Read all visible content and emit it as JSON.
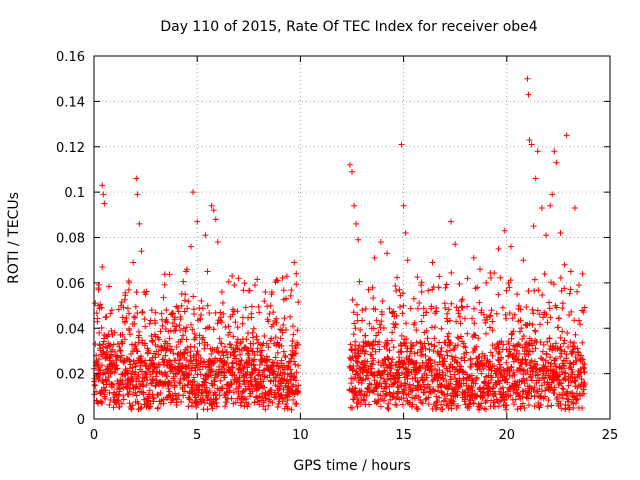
{
  "chart_data": {
    "type": "scatter",
    "title": "Day 110 of 2015, Rate Of TEC Index for receiver obe4",
    "xlabel": "GPS time / hours",
    "ylabel": "ROTI / TECUs",
    "xlim": [
      0,
      25
    ],
    "ylim": [
      0,
      0.16
    ],
    "x_ticks": [
      0,
      5,
      10,
      15,
      20,
      25
    ],
    "x_tick_labels": [
      "0",
      "5",
      "10",
      "15",
      "20",
      "25"
    ],
    "y_ticks": [
      0,
      0.02,
      0.04,
      0.06,
      0.08,
      0.1,
      0.12,
      0.14,
      0.16
    ],
    "y_tick_labels": [
      "0",
      "0.02",
      "0.04",
      "0.06",
      "0.08",
      "0.1",
      "0.12",
      "0.14",
      "0.16"
    ],
    "grid": true,
    "marker": "+",
    "marker_color": "#ff0000",
    "series": [
      {
        "points": [
          [
            0.1,
            0.012
          ],
          [
            0.2,
            0.05
          ],
          [
            0.3,
            0.031
          ],
          [
            0.4,
            0.103
          ],
          [
            0.45,
            0.099
          ],
          [
            0.5,
            0.095
          ],
          [
            0.4,
            0.067
          ],
          [
            0.6,
            0.045
          ],
          [
            0.8,
            0.02
          ],
          [
            1.0,
            0.038
          ],
          [
            1.1,
            0.011
          ],
          [
            1.3,
            0.027
          ],
          [
            1.5,
            0.043
          ],
          [
            1.7,
            0.06
          ],
          [
            1.9,
            0.069
          ],
          [
            2.0,
            0.033
          ],
          [
            2.05,
            0.106
          ],
          [
            2.1,
            0.099
          ],
          [
            2.2,
            0.086
          ],
          [
            2.3,
            0.074
          ],
          [
            2.5,
            0.055
          ],
          [
            2.7,
            0.042
          ],
          [
            2.9,
            0.022
          ],
          [
            3.1,
            0.036
          ],
          [
            3.3,
            0.016
          ],
          [
            3.5,
            0.048
          ],
          [
            3.7,
            0.03
          ],
          [
            3.9,
            0.014
          ],
          [
            4.2,
            0.044
          ],
          [
            4.5,
            0.066
          ],
          [
            4.7,
            0.076
          ],
          [
            4.8,
            0.1
          ],
          [
            5.0,
            0.087
          ],
          [
            5.2,
            0.052
          ],
          [
            5.4,
            0.081
          ],
          [
            5.5,
            0.065
          ],
          [
            5.7,
            0.094
          ],
          [
            5.8,
            0.092
          ],
          [
            5.9,
            0.088
          ],
          [
            6.0,
            0.078
          ],
          [
            6.2,
            0.056
          ],
          [
            6.5,
            0.037
          ],
          [
            6.8,
            0.059
          ],
          [
            7.0,
            0.062
          ],
          [
            7.2,
            0.042
          ],
          [
            7.5,
            0.026
          ],
          [
            7.8,
            0.059
          ],
          [
            8.0,
            0.047
          ],
          [
            8.3,
            0.056
          ],
          [
            8.6,
            0.055
          ],
          [
            8.9,
            0.061
          ],
          [
            9.1,
            0.039
          ],
          [
            9.3,
            0.053
          ],
          [
            9.5,
            0.045
          ],
          [
            9.7,
            0.069
          ],
          [
            9.8,
            0.064
          ],
          [
            12.4,
            0.112
          ],
          [
            12.5,
            0.109
          ],
          [
            12.6,
            0.094
          ],
          [
            12.7,
            0.086
          ],
          [
            12.8,
            0.079
          ],
          [
            13.0,
            0.048
          ],
          [
            13.3,
            0.057
          ],
          [
            13.6,
            0.071
          ],
          [
            13.9,
            0.078
          ],
          [
            14.2,
            0.073
          ],
          [
            14.5,
            0.042
          ],
          [
            14.8,
            0.057
          ],
          [
            14.9,
            0.121
          ],
          [
            15.0,
            0.094
          ],
          [
            15.1,
            0.082
          ],
          [
            15.2,
            0.07
          ],
          [
            15.5,
            0.053
          ],
          [
            15.8,
            0.034
          ],
          [
            16.1,
            0.047
          ],
          [
            16.4,
            0.069
          ],
          [
            16.7,
            0.058
          ],
          [
            17.0,
            0.051
          ],
          [
            17.3,
            0.087
          ],
          [
            17.5,
            0.077
          ],
          [
            17.8,
            0.052
          ],
          [
            18.1,
            0.062
          ],
          [
            18.4,
            0.071
          ],
          [
            18.7,
            0.066
          ],
          [
            19.0,
            0.06
          ],
          [
            19.3,
            0.043
          ],
          [
            19.6,
            0.075
          ],
          [
            19.9,
            0.083
          ],
          [
            20.2,
            0.076
          ],
          [
            20.5,
            0.055
          ],
          [
            20.8,
            0.07
          ],
          [
            21.0,
            0.15
          ],
          [
            21.05,
            0.143
          ],
          [
            21.1,
            0.123
          ],
          [
            21.2,
            0.121
          ],
          [
            21.3,
            0.085
          ],
          [
            21.4,
            0.106
          ],
          [
            21.5,
            0.118
          ],
          [
            21.7,
            0.093
          ],
          [
            21.9,
            0.081
          ],
          [
            22.1,
            0.094
          ],
          [
            22.2,
            0.099
          ],
          [
            22.3,
            0.118
          ],
          [
            22.4,
            0.113
          ],
          [
            22.6,
            0.082
          ],
          [
            22.8,
            0.068
          ],
          [
            22.9,
            0.125
          ],
          [
            23.1,
            0.065
          ],
          [
            23.3,
            0.093
          ],
          [
            23.5,
            0.059
          ],
          [
            23.6,
            0.028
          ],
          [
            23.7,
            0.016
          ]
        ]
      }
    ]
  }
}
